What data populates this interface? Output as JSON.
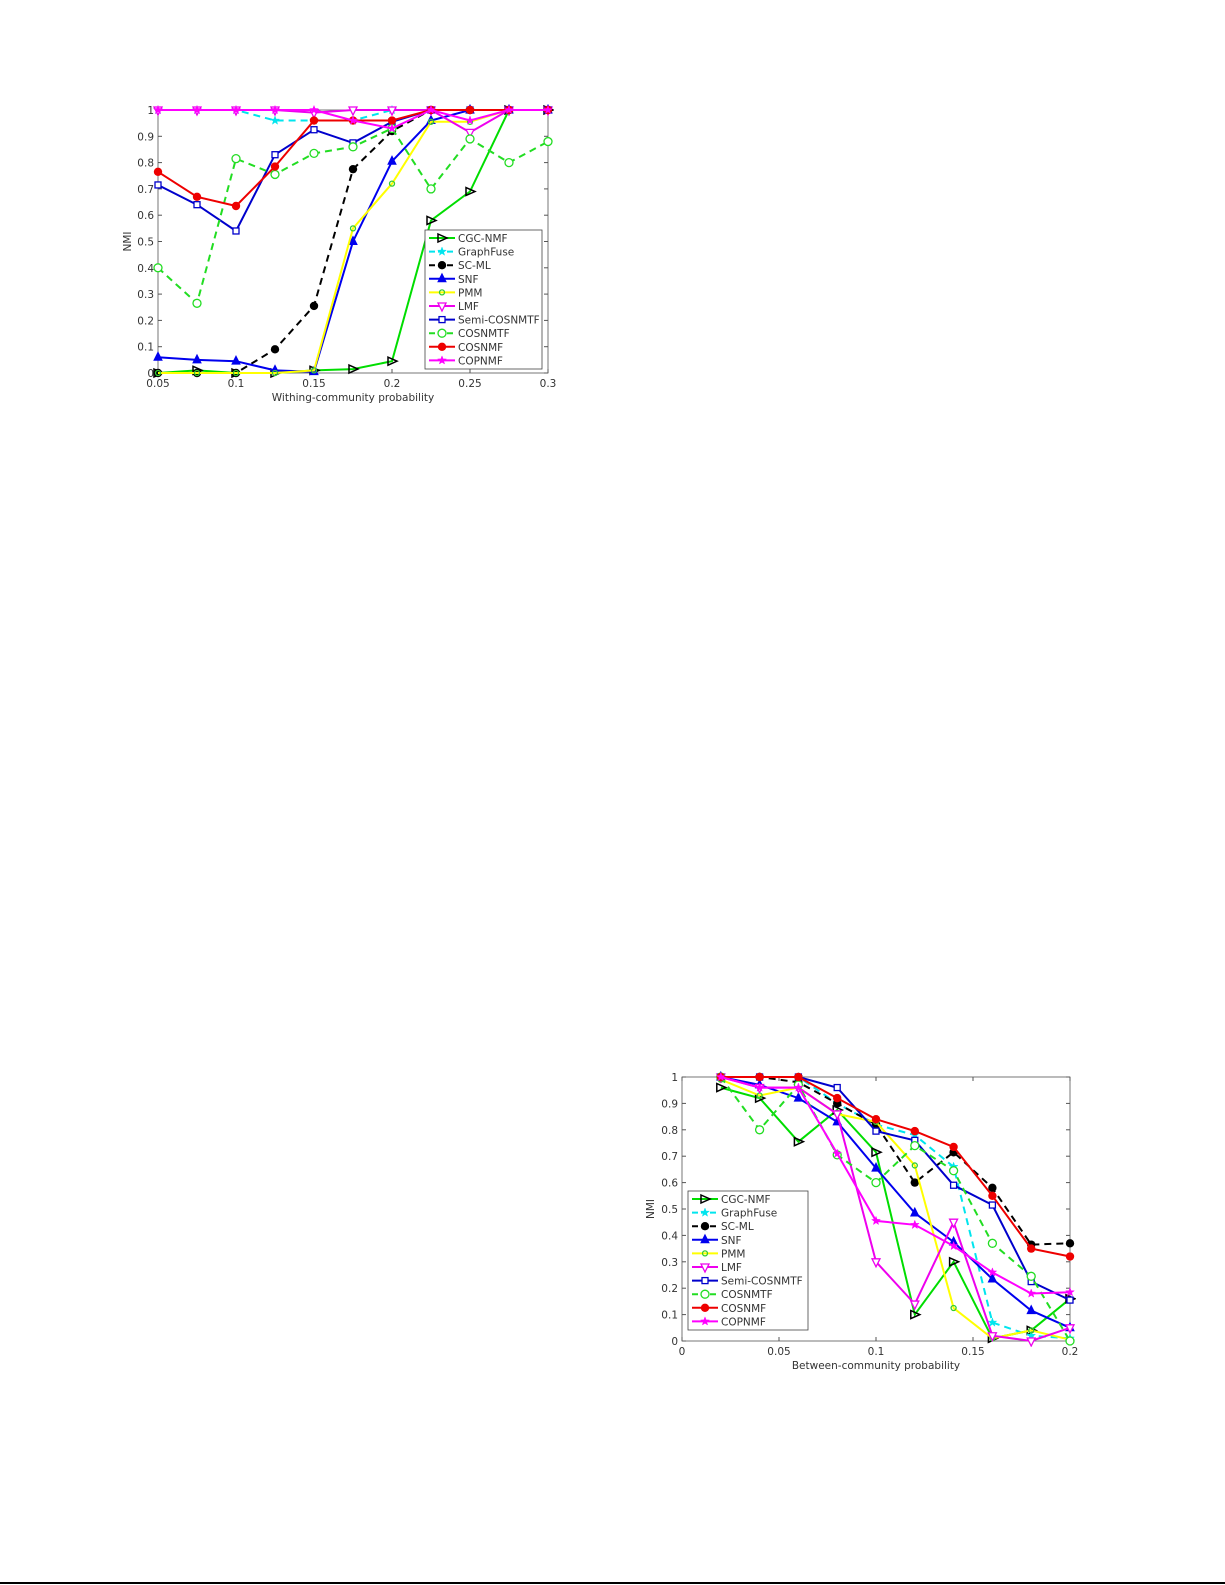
{
  "chart_data": [
    {
      "type": "line",
      "title": "",
      "xlabel": "Withing-community probability",
      "ylabel": "NMI",
      "xlim": [
        0.05,
        0.3
      ],
      "ylim": [
        0,
        1
      ],
      "xticks": [
        0.05,
        0.1,
        0.15,
        0.2,
        0.25,
        0.3
      ],
      "xtick_labels": [
        "0.05",
        "0.1",
        "0.15",
        "0.2",
        "0.25",
        "0.3"
      ],
      "yticks": [
        0,
        0.1,
        0.2,
        0.3,
        0.4,
        0.5,
        0.6,
        0.7,
        0.8,
        0.9,
        1
      ],
      "ytick_labels": [
        "0",
        "0.1",
        "0.2",
        "0.3",
        "0.4",
        "0.5",
        "0.6",
        "0.7",
        "0.8",
        "0.9",
        "1"
      ],
      "grid": false,
      "legend_placement": "bottom-right",
      "x": [
        0.05,
        0.075,
        0.1,
        0.125,
        0.15,
        0.175,
        0.2,
        0.225,
        0.25,
        0.275,
        0.3
      ],
      "series": [
        {
          "name": "CGC-NMF",
          "color": "#00dd00",
          "marker": "triangle-right",
          "marker_edge": "#000000",
          "dash": false,
          "values": [
            0,
            0.01,
            0,
            0,
            0.01,
            0.015,
            0.045,
            0.58,
            0.69,
            1,
            1
          ]
        },
        {
          "name": "GraphFuse",
          "color": "#00e5ee",
          "marker": "star",
          "marker_edge": "#00e5ee",
          "dash": true,
          "values": [
            1,
            1,
            1,
            0.96,
            0.96,
            0.96,
            1,
            1,
            1,
            1,
            1
          ]
        },
        {
          "name": "SC-ML",
          "color": "#000000",
          "marker": "filled-circle",
          "marker_edge": "#000000",
          "dash": true,
          "values": [
            0,
            0,
            0,
            0.09,
            0.255,
            0.775,
            0.92,
            1,
            1,
            1,
            1
          ]
        },
        {
          "name": "SNF",
          "color": "#0000ee",
          "marker": "filled-triangle-up",
          "marker_edge": "#0000ee",
          "dash": false,
          "values": [
            0.06,
            0.05,
            0.045,
            0.01,
            0.005,
            0.5,
            0.805,
            0.96,
            1,
            1,
            1
          ]
        },
        {
          "name": "PMM",
          "color": "#ffff00",
          "marker": "small-circle",
          "marker_edge": "#33cc33",
          "dash": false,
          "values": [
            0,
            0,
            0,
            0,
            0.01,
            0.55,
            0.72,
            0.955,
            0.955,
            1,
            1
          ]
        },
        {
          "name": "LMF",
          "color": "#ee00ee",
          "marker": "triangle-down",
          "marker_edge": "#ee00ee",
          "dash": false,
          "values": [
            1,
            1,
            1,
            1,
            0.99,
            1,
            1,
            1,
            0.915,
            1,
            1
          ]
        },
        {
          "name": "Semi-COSNMTF",
          "color": "#0000cc",
          "marker": "square",
          "marker_edge": "#0000cc",
          "dash": false,
          "values": [
            0.715,
            0.64,
            0.54,
            0.83,
            0.925,
            0.875,
            0.955,
            1,
            1,
            1,
            1
          ]
        },
        {
          "name": "COSNMTF",
          "color": "#22dd22",
          "marker": "circle",
          "marker_edge": "#22dd22",
          "dash": true,
          "values": [
            0.4,
            0.265,
            0.815,
            0.755,
            0.835,
            0.86,
            0.93,
            0.7,
            0.89,
            0.8,
            0.88
          ]
        },
        {
          "name": "COSNMF",
          "color": "#ee0000",
          "marker": "filled-circle",
          "marker_edge": "#ee0000",
          "dash": false,
          "values": [
            0.765,
            0.67,
            0.635,
            0.785,
            0.96,
            0.96,
            0.96,
            1,
            1,
            1,
            1
          ]
        },
        {
          "name": "COPNMF",
          "color": "#ff00ff",
          "marker": "star",
          "marker_edge": "#ff00ff",
          "dash": false,
          "values": [
            1,
            1,
            1,
            1,
            1,
            0.96,
            0.93,
            1,
            0.96,
            1,
            1
          ]
        }
      ]
    },
    {
      "type": "line",
      "title": "",
      "xlabel": "Between-community probability",
      "ylabel": "NMI",
      "xlim": [
        0,
        0.2
      ],
      "ylim": [
        0,
        1
      ],
      "xticks": [
        0,
        0.05,
        0.1,
        0.15,
        0.2
      ],
      "xtick_labels": [
        "0",
        "0.05",
        "0.1",
        "0.15",
        "0.2"
      ],
      "yticks": [
        0,
        0.1,
        0.2,
        0.3,
        0.4,
        0.5,
        0.6,
        0.7,
        0.8,
        0.9,
        1
      ],
      "ytick_labels": [
        "0",
        "0.1",
        "0.2",
        "0.3",
        "0.4",
        "0.5",
        "0.6",
        "0.7",
        "0.8",
        "0.9",
        "1"
      ],
      "grid": false,
      "legend_placement": "bottom-left",
      "x": [
        0.02,
        0.04,
        0.06,
        0.08,
        0.1,
        0.12,
        0.14,
        0.16,
        0.18,
        0.2
      ],
      "series": [
        {
          "name": "CGC-NMF",
          "color": "#00dd00",
          "marker": "triangle-right",
          "marker_edge": "#000000",
          "dash": false,
          "values": [
            0.96,
            0.92,
            0.755,
            0.875,
            0.715,
            0.1,
            0.3,
            0.01,
            0.04,
            0.16
          ]
        },
        {
          "name": "GraphFuse",
          "color": "#00e5ee",
          "marker": "star",
          "marker_edge": "#00e5ee",
          "dash": true,
          "values": [
            1,
            1,
            1,
            0.9,
            0.82,
            0.78,
            0.66,
            0.07,
            0.02,
            0.01
          ]
        },
        {
          "name": "SC-ML",
          "color": "#000000",
          "marker": "filled-circle",
          "marker_edge": "#000000",
          "dash": true,
          "values": [
            1,
            1,
            0.98,
            0.9,
            0.82,
            0.6,
            0.715,
            0.58,
            0.365,
            0.37
          ]
        },
        {
          "name": "SNF",
          "color": "#0000ee",
          "marker": "filled-triangle-up",
          "marker_edge": "#0000ee",
          "dash": false,
          "values": [
            1,
            0.97,
            0.92,
            0.83,
            0.655,
            0.485,
            0.375,
            0.235,
            0.115,
            0.05
          ]
        },
        {
          "name": "PMM",
          "color": "#ffff00",
          "marker": "small-circle",
          "marker_edge": "#33cc33",
          "dash": false,
          "values": [
            0.99,
            0.93,
            0.96,
            0.86,
            0.83,
            0.665,
            0.125,
            0.01,
            0.04,
            0.005
          ]
        },
        {
          "name": "LMF",
          "color": "#ee00ee",
          "marker": "triangle-down",
          "marker_edge": "#ee00ee",
          "dash": false,
          "values": [
            1,
            0.96,
            0.96,
            0.86,
            0.3,
            0.14,
            0.45,
            0.02,
            0,
            0.05
          ]
        },
        {
          "name": "Semi-COSNMTF",
          "color": "#0000cc",
          "marker": "square",
          "marker_edge": "#0000cc",
          "dash": false,
          "values": [
            1,
            1,
            1,
            0.96,
            0.795,
            0.76,
            0.59,
            0.515,
            0.225,
            0.155
          ]
        },
        {
          "name": "COSNMTF",
          "color": "#22dd22",
          "marker": "circle",
          "marker_edge": "#22dd22",
          "dash": true,
          "values": [
            1,
            0.8,
            0.97,
            0.705,
            0.6,
            0.74,
            0.645,
            0.37,
            0.245,
            0
          ]
        },
        {
          "name": "COSNMF",
          "color": "#ee0000",
          "marker": "filled-circle",
          "marker_edge": "#ee0000",
          "dash": false,
          "values": [
            1,
            1,
            1,
            0.92,
            0.84,
            0.795,
            0.735,
            0.55,
            0.35,
            0.32
          ]
        },
        {
          "name": "COPNMF",
          "color": "#ff00ff",
          "marker": "star",
          "marker_edge": "#ff00ff",
          "dash": false,
          "values": [
            1,
            0.96,
            0.96,
            0.71,
            0.455,
            0.44,
            0.36,
            0.26,
            0.18,
            0.185
          ]
        }
      ]
    }
  ]
}
